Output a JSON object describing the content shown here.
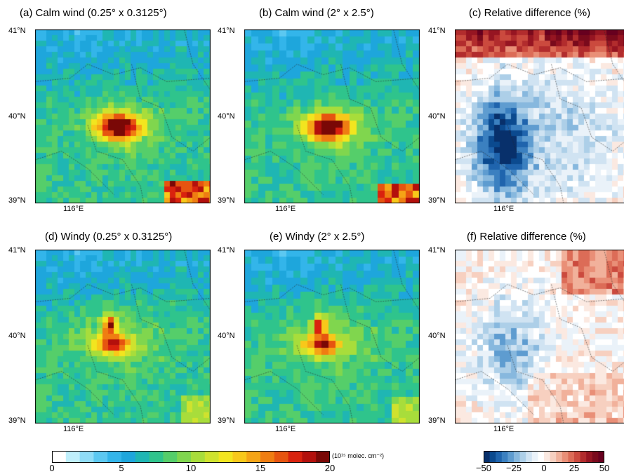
{
  "panels": [
    {
      "id": "a",
      "title": "(a) Calm wind (0.25° x 0.3125°)",
      "kind": "abs",
      "pattern": "calm-fine"
    },
    {
      "id": "b",
      "title": "(b) Calm wind (2° x 2.5°)",
      "kind": "abs",
      "pattern": "calm-coarse"
    },
    {
      "id": "c",
      "title": "(c) Relative difference (%)",
      "kind": "rel",
      "pattern": "calm-diff"
    },
    {
      "id": "d",
      "title": "(d) Windy (0.25° x 0.3125°)",
      "kind": "abs",
      "pattern": "windy-fine"
    },
    {
      "id": "e",
      "title": "(e) Windy (2° x 2.5°)",
      "kind": "abs",
      "pattern": "windy-coarse"
    },
    {
      "id": "f",
      "title": "(f) Relative difference (%)",
      "kind": "rel",
      "pattern": "windy-diff"
    }
  ],
  "axis_labels": {
    "lat_top": "41°N",
    "lat_mid": "40°N",
    "lat_bottom": "39°N",
    "lon": "116°E"
  },
  "colorbar_abs": {
    "ticks": [
      "0",
      "5",
      "10",
      "15",
      "20"
    ],
    "unit": "(10¹⁵ molec. cm⁻²)",
    "range": [
      0,
      20
    ],
    "colors": [
      "#ffffff",
      "#bfeffb",
      "#8fdcf7",
      "#5cc8f1",
      "#33b5ea",
      "#1ea6dc",
      "#1fb6b3",
      "#2fc48c",
      "#55ce6a",
      "#80d64e",
      "#a8dd3b",
      "#cfe22e",
      "#f2e51f",
      "#f8c81a",
      "#f5a416",
      "#ef7d12",
      "#e65410",
      "#d9220e",
      "#b3100c",
      "#7a0806"
    ]
  },
  "colorbar_rel": {
    "ticks": [
      "−50",
      "−25",
      "0",
      "25",
      "50"
    ],
    "range": [
      -50,
      50
    ],
    "colors": [
      "#08306b",
      "#0b4a8f",
      "#1f64ad",
      "#3b80c0",
      "#5e9cd0",
      "#87b8de",
      "#adcfe8",
      "#d0e3f2",
      "#eaf2f9",
      "#ffffff",
      "#fbe9e1",
      "#f7d0c0",
      "#f1b19b",
      "#e98f77",
      "#dc6c57",
      "#cb4a3e",
      "#b22c2d",
      "#961522",
      "#7a0a1c",
      "#67001f"
    ]
  }
}
